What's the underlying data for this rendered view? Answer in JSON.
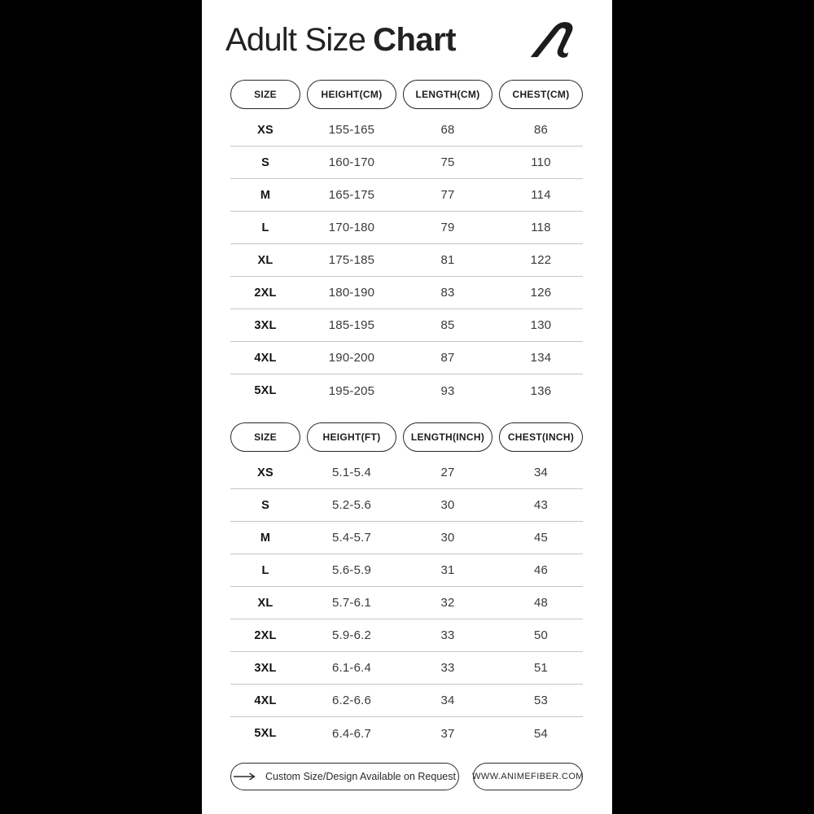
{
  "title": {
    "regular": "Adult Size",
    "bold": "Chart"
  },
  "chart_data": [
    {
      "type": "table",
      "columns": [
        "SIZE",
        "HEIGHT(CM)",
        "LENGTH(CM)",
        "CHEST(CM)"
      ],
      "rows": [
        [
          "XS",
          "155-165",
          "68",
          "86"
        ],
        [
          "S",
          "160-170",
          "75",
          "110"
        ],
        [
          "M",
          "165-175",
          "77",
          "114"
        ],
        [
          "L",
          "170-180",
          "79",
          "118"
        ],
        [
          "XL",
          "175-185",
          "81",
          "122"
        ],
        [
          "2XL",
          "180-190",
          "83",
          "126"
        ],
        [
          "3XL",
          "185-195",
          "85",
          "130"
        ],
        [
          "4XL",
          "190-200",
          "87",
          "134"
        ],
        [
          "5XL",
          "195-205",
          "93",
          "136"
        ]
      ]
    },
    {
      "type": "table",
      "columns": [
        "SIZE",
        "HEIGHT(FT)",
        "LENGTH(INCH)",
        "CHEST(INCH)"
      ],
      "rows": [
        [
          "XS",
          "5.1-5.4",
          "27",
          "34"
        ],
        [
          "S",
          "5.2-5.6",
          "30",
          "43"
        ],
        [
          "M",
          "5.4-5.7",
          "30",
          "45"
        ],
        [
          "L",
          "5.6-5.9",
          "31",
          "46"
        ],
        [
          "XL",
          "5.7-6.1",
          "32",
          "48"
        ],
        [
          "2XL",
          "5.9-6.2",
          "33",
          "50"
        ],
        [
          "3XL",
          "6.1-6.4",
          "33",
          "51"
        ],
        [
          "4XL",
          "6.2-6.6",
          "34",
          "53"
        ],
        [
          "5XL",
          "6.4-6.7",
          "37",
          "54"
        ]
      ]
    }
  ],
  "footer": {
    "custom_request_label": "Custom Size/Design Available on Request",
    "website": "WWW.ANIMEFIBER.COM"
  },
  "colors": {
    "background": "#000000",
    "panel": "#ffffff",
    "text": "#1d1d1d",
    "divider": "#c6c6c6",
    "pill_border": "#272727"
  }
}
